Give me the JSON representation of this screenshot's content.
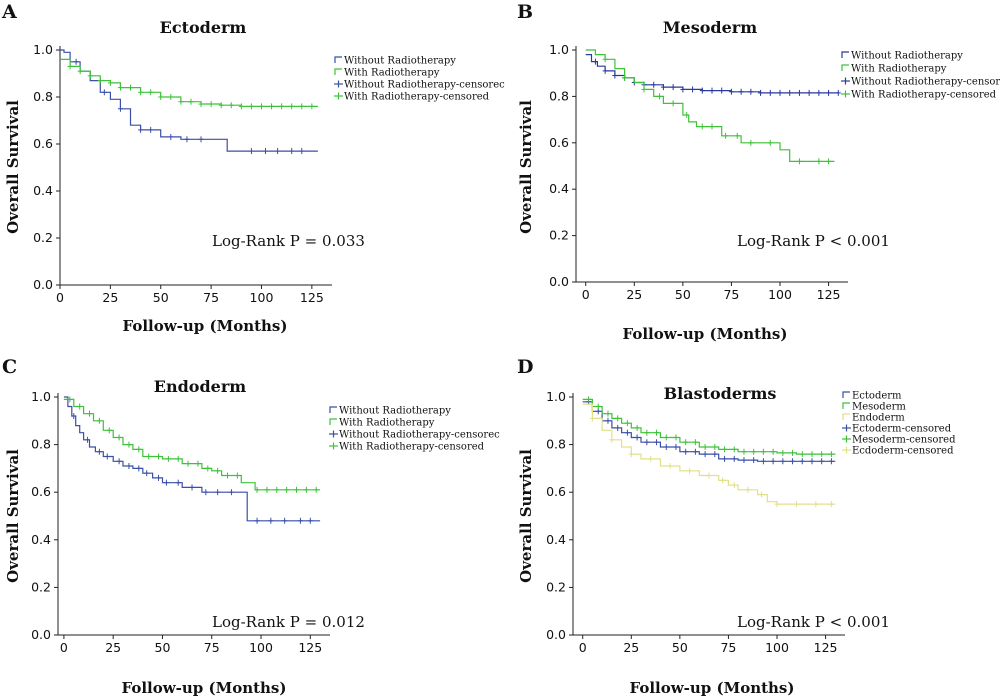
{
  "chart_data": [
    {
      "type": "line",
      "panel": "A",
      "title": "Ectoderm",
      "xlabel": "Follow-up (Months)",
      "ylabel": "Overall Survival",
      "xlim": [
        0,
        135
      ],
      "ylim": [
        0,
        1
      ],
      "xticks": [
        "0",
        "25",
        "50",
        "75",
        "100",
        "125"
      ],
      "yticks": [
        "0.0",
        "0.2",
        "0.4",
        "0.6",
        "0.8",
        "1.0"
      ],
      "annotation": "Log-Rank P = 0.033",
      "legend_position": "top-right",
      "legend": [
        {
          "label": "Without Radiotherapy",
          "color": "#3a4fa8",
          "style": "line"
        },
        {
          "label": "With Radiotherapy",
          "color": "#3ec23a",
          "style": "line"
        },
        {
          "label": "Without Radiotherapy-censorec",
          "color": "#3a4fa8",
          "style": "cross"
        },
        {
          "label": "With Radiotherapy-censored",
          "color": "#3ec23a",
          "style": "cross"
        }
      ],
      "series": [
        {
          "color": "#3a4fa8",
          "step": true,
          "x": [
            0,
            2,
            5,
            10,
            15,
            20,
            25,
            30,
            35,
            40,
            50,
            60,
            75,
            83,
            90,
            100,
            110,
            120,
            128
          ],
          "y": [
            1.0,
            0.99,
            0.95,
            0.91,
            0.87,
            0.82,
            0.79,
            0.75,
            0.68,
            0.66,
            0.63,
            0.62,
            0.62,
            0.57,
            0.57,
            0.57,
            0.57,
            0.57,
            0.57
          ],
          "censored_x": [
            8,
            22,
            30,
            40,
            45,
            55,
            63,
            70,
            95,
            102,
            108,
            115,
            120
          ]
        },
        {
          "color": "#3ec23a",
          "step": true,
          "x": [
            0,
            5,
            10,
            15,
            20,
            25,
            30,
            40,
            50,
            60,
            70,
            80,
            90,
            100,
            110,
            128
          ],
          "y": [
            0.96,
            0.93,
            0.91,
            0.89,
            0.87,
            0.86,
            0.84,
            0.82,
            0.8,
            0.78,
            0.77,
            0.765,
            0.76,
            0.76,
            0.76,
            0.76
          ],
          "censored_x": [
            5,
            10,
            15,
            20,
            25,
            30,
            35,
            40,
            45,
            50,
            55,
            60,
            65,
            70,
            75,
            80,
            85,
            90,
            95,
            100,
            105,
            110,
            115,
            120,
            125
          ]
        }
      ]
    },
    {
      "type": "line",
      "panel": "B",
      "title": "Mesoderm",
      "xlabel": "Follow-up (Months)",
      "ylabel": "Overall Survival",
      "xlim": [
        -5,
        135
      ],
      "ylim": [
        0,
        1
      ],
      "xticks": [
        "0",
        "25",
        "50",
        "75",
        "100",
        "125"
      ],
      "yticks": [
        "0.0",
        "0.2",
        "0.4",
        "0.6",
        "0.8",
        "1.0"
      ],
      "annotation": "Log-Rank P < 0.001",
      "legend_position": "top-right",
      "legend": [
        {
          "label": "Without Radiotherapy",
          "color": "#2a3a9e",
          "style": "line"
        },
        {
          "label": "With Radiotherapy",
          "color": "#3ec23a",
          "style": "line"
        },
        {
          "label": "Without Radiotherapy-censorec",
          "color": "#2a3a9e",
          "style": "cross"
        },
        {
          "label": "With Radiotherapy-censored",
          "color": "#3ec23a",
          "style": "cross"
        }
      ],
      "series": [
        {
          "color": "#2a3a9e",
          "step": true,
          "x": [
            0,
            3,
            6,
            10,
            15,
            20,
            25,
            30,
            40,
            50,
            60,
            75,
            90,
            100,
            110,
            120,
            130
          ],
          "y": [
            0.98,
            0.95,
            0.93,
            0.91,
            0.89,
            0.88,
            0.86,
            0.85,
            0.84,
            0.83,
            0.825,
            0.82,
            0.815,
            0.815,
            0.815,
            0.815,
            0.815
          ],
          "censored_x": [
            5,
            10,
            15,
            20,
            25,
            30,
            35,
            40,
            45,
            50,
            55,
            60,
            65,
            70,
            75,
            80,
            85,
            90,
            95,
            100,
            105,
            110,
            115,
            120,
            125,
            130
          ]
        },
        {
          "color": "#3ec23a",
          "step": true,
          "x": [
            0,
            5,
            10,
            15,
            20,
            25,
            30,
            35,
            40,
            48,
            50,
            53,
            57,
            62,
            70,
            80,
            90,
            100,
            105,
            115,
            128
          ],
          "y": [
            1.0,
            0.98,
            0.96,
            0.92,
            0.88,
            0.86,
            0.83,
            0.8,
            0.77,
            0.77,
            0.72,
            0.69,
            0.67,
            0.67,
            0.63,
            0.6,
            0.6,
            0.57,
            0.52,
            0.52,
            0.52
          ],
          "censored_x": [
            10,
            20,
            30,
            38,
            45,
            52,
            60,
            65,
            72,
            78,
            85,
            95,
            110,
            120,
            125
          ]
        }
      ]
    },
    {
      "type": "line",
      "panel": "C",
      "title": "Endoderm",
      "xlabel": "Follow-up (Months)",
      "ylabel": "Overall Survival",
      "xlim": [
        -3,
        135
      ],
      "ylim": [
        0,
        1
      ],
      "xticks": [
        "0",
        "25",
        "50",
        "75",
        "100",
        "125"
      ],
      "yticks": [
        "0.0",
        "0.2",
        "0.4",
        "0.6",
        "0.8",
        "1.0"
      ],
      "annotation": "Log-Rank P = 0.012",
      "legend_position": "top-right",
      "legend": [
        {
          "label": "Without Radiotherapy",
          "color": "#3a4fa8",
          "style": "line"
        },
        {
          "label": "With Radiotherapy",
          "color": "#3ec23a",
          "style": "line"
        },
        {
          "label": "Without Radiotherapy-censorec",
          "color": "#3a4fa8",
          "style": "cross"
        },
        {
          "label": "With Radiotherapy-censored",
          "color": "#3ec23a",
          "style": "cross"
        }
      ],
      "series": [
        {
          "color": "#3a4fa8",
          "step": true,
          "x": [
            0,
            2,
            4,
            6,
            8,
            10,
            13,
            16,
            20,
            25,
            30,
            35,
            40,
            45,
            50,
            55,
            60,
            70,
            90,
            93,
            100,
            130
          ],
          "y": [
            1.0,
            0.96,
            0.92,
            0.88,
            0.85,
            0.82,
            0.79,
            0.77,
            0.75,
            0.73,
            0.71,
            0.7,
            0.68,
            0.66,
            0.64,
            0.64,
            0.62,
            0.6,
            0.6,
            0.48,
            0.48,
            0.48
          ],
          "censored_x": [
            5,
            12,
            18,
            22,
            28,
            33,
            38,
            42,
            48,
            52,
            58,
            65,
            72,
            78,
            85,
            98,
            105,
            112,
            120,
            125
          ]
        },
        {
          "color": "#3ec23a",
          "step": true,
          "x": [
            0,
            5,
            10,
            15,
            20,
            25,
            30,
            35,
            40,
            50,
            60,
            70,
            75,
            80,
            90,
            97,
            130
          ],
          "y": [
            0.99,
            0.96,
            0.93,
            0.9,
            0.86,
            0.83,
            0.8,
            0.78,
            0.75,
            0.74,
            0.72,
            0.7,
            0.69,
            0.67,
            0.64,
            0.61,
            0.61
          ],
          "censored_x": [
            3,
            8,
            13,
            18,
            23,
            28,
            33,
            38,
            43,
            48,
            53,
            58,
            63,
            68,
            73,
            78,
            83,
            88,
            98,
            103,
            108,
            113,
            118,
            123,
            128
          ]
        }
      ]
    },
    {
      "type": "line",
      "panel": "D",
      "title": "Blastoderms",
      "xlabel": "Follow-up (Months)",
      "ylabel": "Overall Survival",
      "xlim": [
        -5,
        135
      ],
      "ylim": [
        0,
        1
      ],
      "xticks": [
        "0",
        "25",
        "50",
        "75",
        "100",
        "125"
      ],
      "yticks": [
        "0.0",
        "0.2",
        "0.4",
        "0.6",
        "0.8",
        "1.0"
      ],
      "annotation": "Log-Rank P < 0.001",
      "legend_position": "top-right",
      "legend": [
        {
          "label": "Ectoderm",
          "color": "#3a4fa8",
          "style": "line"
        },
        {
          "label": "Mesoderm",
          "color": "#3ec23a",
          "style": "line"
        },
        {
          "label": "Endoderm",
          "color": "#e0e08a",
          "style": "line"
        },
        {
          "label": "Ectoderm-censored",
          "color": "#3a4fa8",
          "style": "cross"
        },
        {
          "label": "Mesoderm-censored",
          "color": "#3ec23a",
          "style": "cross"
        },
        {
          "label": "Ecdoderm-censored",
          "color": "#e0e08a",
          "style": "cross"
        }
      ],
      "series": [
        {
          "color": "#3a4fa8",
          "step": true,
          "x": [
            0,
            5,
            10,
            15,
            20,
            25,
            30,
            40,
            50,
            60,
            70,
            80,
            90,
            100,
            110,
            120,
            130
          ],
          "y": [
            0.98,
            0.94,
            0.9,
            0.87,
            0.85,
            0.83,
            0.81,
            0.79,
            0.77,
            0.76,
            0.74,
            0.735,
            0.73,
            0.73,
            0.73,
            0.73,
            0.73
          ],
          "censored_x": [
            3,
            8,
            13,
            18,
            23,
            28,
            33,
            38,
            43,
            48,
            53,
            58,
            63,
            68,
            73,
            78,
            83,
            88,
            93,
            98,
            103,
            108,
            113,
            118,
            123,
            128
          ]
        },
        {
          "color": "#3ec23a",
          "step": true,
          "x": [
            0,
            5,
            10,
            15,
            20,
            25,
            30,
            40,
            50,
            60,
            70,
            80,
            90,
            100,
            110,
            120,
            130
          ],
          "y": [
            0.99,
            0.96,
            0.93,
            0.91,
            0.89,
            0.87,
            0.85,
            0.83,
            0.81,
            0.79,
            0.78,
            0.77,
            0.77,
            0.765,
            0.76,
            0.76,
            0.76
          ],
          "censored_x": [
            3,
            8,
            13,
            18,
            23,
            28,
            33,
            38,
            43,
            48,
            53,
            58,
            63,
            68,
            73,
            78,
            83,
            88,
            93,
            98,
            103,
            108,
            113,
            118,
            123,
            128
          ]
        },
        {
          "color": "#e0e08a",
          "step": true,
          "x": [
            0,
            5,
            10,
            15,
            20,
            25,
            30,
            40,
            50,
            60,
            70,
            75,
            80,
            90,
            95,
            100,
            110,
            130
          ],
          "y": [
            0.97,
            0.91,
            0.86,
            0.82,
            0.79,
            0.76,
            0.74,
            0.71,
            0.69,
            0.67,
            0.65,
            0.63,
            0.61,
            0.59,
            0.56,
            0.55,
            0.55,
            0.55
          ],
          "censored_x": [
            5,
            15,
            25,
            35,
            45,
            55,
            65,
            72,
            78,
            85,
            92,
            100,
            110,
            120,
            128
          ]
        }
      ]
    }
  ]
}
